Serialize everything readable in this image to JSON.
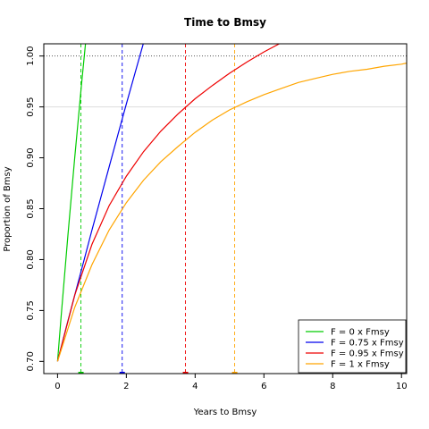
{
  "chart_data": {
    "type": "line",
    "title": "Time to Bmsy",
    "xlabel": "Years to Bmsy",
    "ylabel": "Proportion of Bmsy",
    "xlim": [
      -0.4,
      10.15
    ],
    "ylim": [
      0.688,
      1.012
    ],
    "xticks": [
      0,
      2,
      4,
      6,
      8,
      10
    ],
    "yticks": [
      0.7,
      0.75,
      0.8,
      0.85,
      0.9,
      0.95,
      1.0
    ],
    "xtick_labels": [
      "0",
      "2",
      "4",
      "6",
      "8",
      "10"
    ],
    "ytick_labels": [
      "0.70",
      "0.75",
      "0.80",
      "0.85",
      "0.90",
      "0.95",
      "1.00"
    ],
    "reference_line": {
      "y": 1.0,
      "style": "dotted",
      "color": "#555555"
    },
    "grid_line": {
      "y": 0.95,
      "color": "#dddddd"
    },
    "legend_position": "bottom-right",
    "series": [
      {
        "name": "F = 0 x Fmsy",
        "color": "#00cc00",
        "x": [
          0,
          0.1,
          0.2,
          0.3,
          0.4,
          0.5,
          0.6,
          0.7,
          0.8,
          0.9
        ],
        "y": [
          0.7,
          0.742,
          0.783,
          0.823,
          0.862,
          0.9,
          0.937,
          0.973,
          1.008,
          1.042
        ],
        "time_to_target": 0.68
      },
      {
        "name": "F = 0.75 x Fmsy",
        "color": "#0000ee",
        "x": [
          0,
          0.25,
          0.5,
          0.75,
          1.0,
          1.25,
          1.5,
          1.75,
          2.0,
          2.25,
          2.5,
          2.75
        ],
        "y": [
          0.7,
          0.733,
          0.765,
          0.797,
          0.829,
          0.86,
          0.891,
          0.922,
          0.953,
          0.983,
          1.013,
          1.042
        ],
        "time_to_target": 1.88
      },
      {
        "name": "F = 0.95 x Fmsy",
        "color": "#ee0000",
        "x": [
          0,
          0.5,
          1,
          1.5,
          2,
          2.5,
          3,
          3.5,
          4,
          4.5,
          5,
          5.5,
          6,
          6.5,
          7
        ],
        "y": [
          0.7,
          0.765,
          0.815,
          0.853,
          0.882,
          0.906,
          0.926,
          0.943,
          0.958,
          0.971,
          0.983,
          0.994,
          1.004,
          1.013,
          1.021
        ],
        "time_to_target": 3.72
      },
      {
        "name": "F = 1 x Fmsy",
        "color": "#ffa500",
        "x": [
          0,
          0.5,
          1,
          1.5,
          2,
          2.5,
          3,
          3.5,
          4,
          4.5,
          5,
          5.5,
          6,
          6.5,
          7,
          7.5,
          8,
          8.5,
          9,
          9.5,
          10,
          10.15
        ],
        "y": [
          0.7,
          0.753,
          0.795,
          0.829,
          0.856,
          0.878,
          0.896,
          0.911,
          0.925,
          0.937,
          0.947,
          0.955,
          0.962,
          0.968,
          0.974,
          0.978,
          0.982,
          0.985,
          0.987,
          0.99,
          0.992,
          0.993
        ],
        "time_to_target": 5.15
      }
    ]
  }
}
